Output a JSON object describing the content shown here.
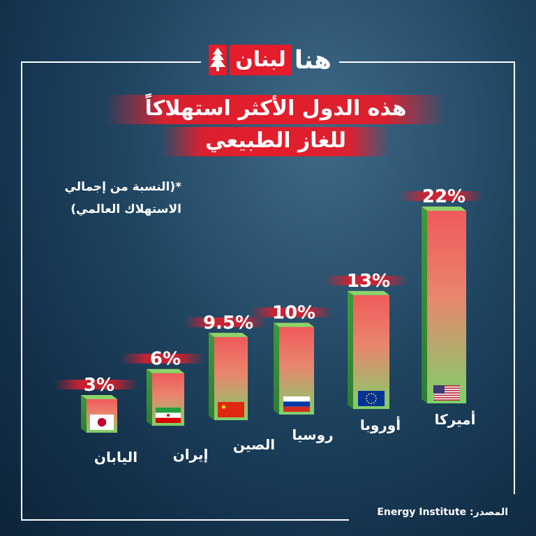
{
  "brand": {
    "hona": "هنا",
    "lebnan": "لبنان"
  },
  "title": {
    "line1": "هذه الدول الأكثر استهلاكاً",
    "line2": "للغاز الطبيعي"
  },
  "note": {
    "line1": "*(النسبة من إجمالي",
    "line2": "الاستهلاك العالمي)"
  },
  "source": "المصدر: Energy Institute",
  "colors": {
    "accent_red": "#e31d2b",
    "bar_green": "#4caf50",
    "bar_top": "#9bd86a"
  },
  "chart_data": {
    "type": "bar",
    "categories": [
      "اليابان",
      "إيران",
      "الصين",
      "روسيا",
      "أوروبا",
      "أميركا"
    ],
    "values": [
      3,
      6,
      9.5,
      10,
      13,
      22
    ],
    "value_labels": [
      "3%",
      "6%",
      "9.5%",
      "10%",
      "13%",
      "22%"
    ],
    "flags": [
      "japan-flag",
      "iran-flag",
      "china-flag",
      "russia-flag",
      "eu-flag",
      "usa-flag"
    ],
    "title": "",
    "xlabel": "",
    "ylabel": "",
    "ylim": [
      0,
      22
    ]
  }
}
